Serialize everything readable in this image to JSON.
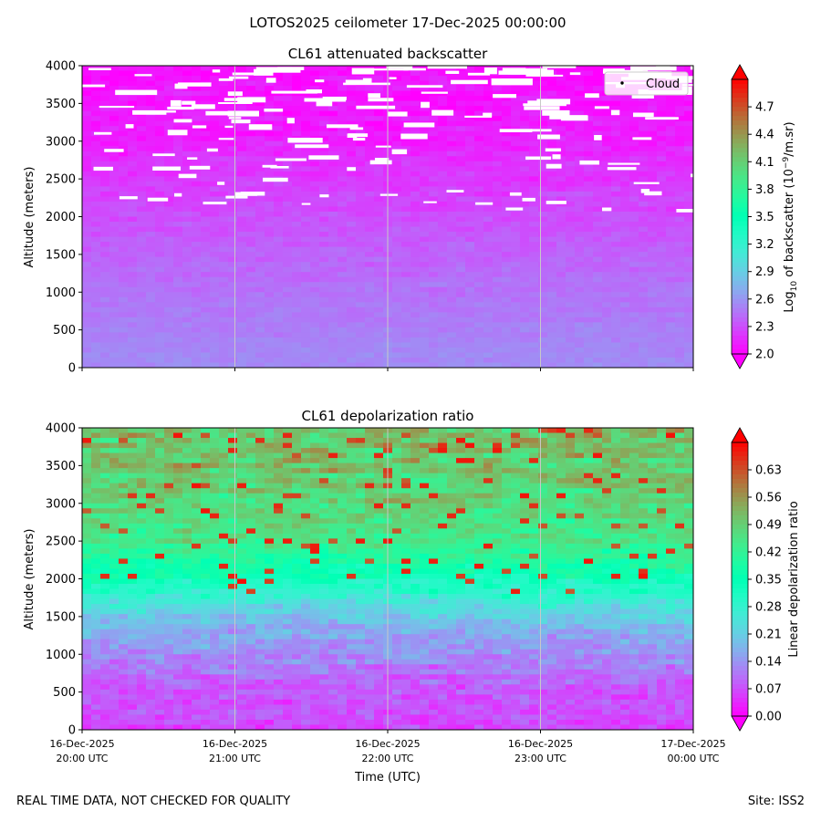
{
  "figure": {
    "suptitle": "LOTOS2025 ceilometer 17-Dec-2025 00:00:00",
    "footer_left": "REAL TIME DATA, NOT CHECKED FOR QUALITY",
    "footer_right": "Site: ISS2",
    "xlabel": "Time (UTC)",
    "colors": {
      "cloud": "#ffffff",
      "grid": "#c8c8c8"
    }
  },
  "chart_data": [
    {
      "type": "heatmap",
      "title": "CL61 attenuated backscatter",
      "ylabel": "Altitude (meters)",
      "ylim": [
        0,
        4000
      ],
      "yticks": [
        "0",
        "500",
        "1000",
        "1500",
        "2000",
        "2500",
        "3000",
        "3500",
        "4000"
      ],
      "xlim_hours": [
        20,
        24
      ],
      "colorbar": {
        "label_prefix": "Log",
        "label_sub": "10",
        "label_mid": " of backscatter (10",
        "label_sup": "−9",
        "label_suffix": "/m.sr)",
        "range": [
          2.0,
          5.0
        ],
        "ticks": [
          "2.0",
          "2.3",
          "2.6",
          "2.9",
          "3.2",
          "3.5",
          "3.8",
          "4.1",
          "4.4",
          "4.7"
        ],
        "extend": "both"
      },
      "legend": {
        "label": "Cloud",
        "position": "top-right"
      },
      "profile": {
        "altitude_m": [
          0,
          500,
          1000,
          1500,
          2000,
          2500,
          3000,
          3500,
          4000
        ],
        "typical_value": [
          2.55,
          2.5,
          2.45,
          2.38,
          2.3,
          2.22,
          2.12,
          2.08,
          2.05
        ]
      },
      "cloud_altitude_range_m": [
        2100,
        4000
      ],
      "cloud_fraction_note": "sparse below 2600 m, dense 3300-4000 m"
    },
    {
      "type": "heatmap",
      "title": "CL61 depolarization ratio",
      "ylabel": "Altitude (meters)",
      "ylim": [
        0,
        4000
      ],
      "yticks": [
        "0",
        "500",
        "1000",
        "1500",
        "2000",
        "2500",
        "3000",
        "3500",
        "4000"
      ],
      "xlim_hours": [
        20,
        24
      ],
      "colorbar": {
        "label": "Linear depolarization ratio",
        "range": [
          0.0,
          0.7
        ],
        "ticks": [
          "0.00",
          "0.07",
          "0.14",
          "0.21",
          "0.28",
          "0.35",
          "0.42",
          "0.49",
          "0.56",
          "0.63"
        ],
        "extend": "both"
      },
      "profile": {
        "altitude_m": [
          0,
          500,
          1000,
          1500,
          2000,
          2500,
          3000,
          3500,
          4000
        ],
        "typical_value": [
          0.06,
          0.08,
          0.13,
          0.2,
          0.34,
          0.44,
          0.48,
          0.5,
          0.5
        ]
      }
    }
  ],
  "x_ticks": [
    {
      "date": "16-Dec-2025",
      "time": "20:00 UTC"
    },
    {
      "date": "16-Dec-2025",
      "time": "21:00 UTC"
    },
    {
      "date": "16-Dec-2025",
      "time": "22:00 UTC"
    },
    {
      "date": "16-Dec-2025",
      "time": "23:00 UTC"
    },
    {
      "date": "17-Dec-2025",
      "time": "00:00 UTC"
    }
  ]
}
